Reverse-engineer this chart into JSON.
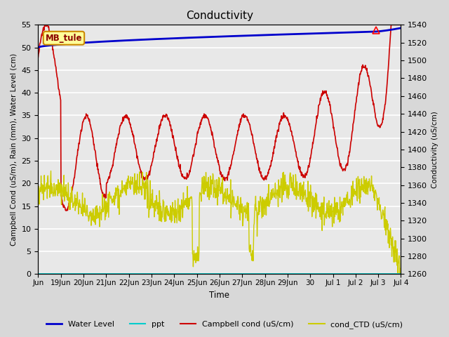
{
  "title": "Conductivity",
  "xlabel": "Time",
  "ylabel_left": "Campbell Cond (uS/m), Rain (mm), Water Level (cm)",
  "ylabel_right": "Conductivity (uS/cm)",
  "ylim_left": [
    0,
    55
  ],
  "ylim_right": [
    1260,
    1540
  ],
  "bg_color": "#e0e0e0",
  "plot_bg_color": "#e8e8e8",
  "annotation_label": "MB_tule",
  "annotation_color": "#cc8800",
  "annotation_bg": "#ffff99",
  "x_tick_labels": [
    "Jun",
    "19Jun",
    "20Jun",
    "21Jun",
    "22Jun",
    "23Jun",
    "24Jun",
    "25Jun",
    "26Jun",
    "27Jun",
    "28Jun",
    "29Jun",
    "30",
    "Jul 1",
    "Jul 2",
    "Jul 3",
    "Jul 4"
  ],
  "water_level_color": "#0000cc",
  "ppt_color": "#00cccc",
  "campbell_color": "#cc0000",
  "ctd_color": "#cccc00",
  "legend_labels": [
    "Water Level",
    "ppt",
    "Campbell cond (uS/cm)",
    "cond_CTD (uS/cm)"
  ]
}
